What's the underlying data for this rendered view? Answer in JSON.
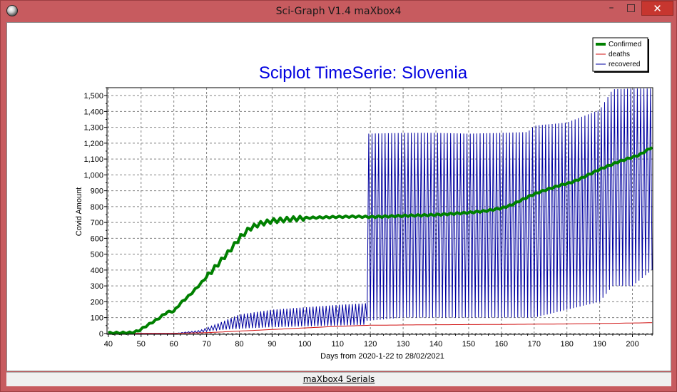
{
  "window": {
    "title": "Sci-Graph V1.4 maXbox4",
    "minimize_glyph": "–",
    "maximize_glyph": "□",
    "close_glyph": "✕",
    "icon": "app-globe-icon"
  },
  "status_bar": {
    "text": "maXbox4 Serials"
  },
  "colors": {
    "confirmed": "#008000",
    "deaths": "#d01010",
    "recovered": "#0000a0",
    "title": "#0000e0",
    "window_frame": "#c75b5f",
    "close_button": "#c7362f"
  },
  "chart_data": {
    "type": "line",
    "title": "Sciplot TimeSerie: Slovenia",
    "xlabel": "Days from 2020-1-22 to 28/02/2021",
    "ylabel": "Covid Amount",
    "xlim": [
      39.6,
      206.2
    ],
    "ylim": [
      -5,
      1550
    ],
    "xticks": [
      40,
      50,
      60,
      70,
      80,
      90,
      100,
      110,
      120,
      130,
      140,
      150,
      160,
      170,
      180,
      190,
      200
    ],
    "yticks": [
      0,
      100,
      200,
      300,
      400,
      500,
      600,
      700,
      800,
      900,
      1000,
      1100,
      1200,
      1300,
      1400,
      1500
    ],
    "ytick_labels": [
      "0",
      "100",
      "200",
      "300",
      "400",
      "500",
      "600",
      "700",
      "800",
      "900",
      "1,000",
      "1,100",
      "1,200",
      "1,300",
      "1,400",
      "1,500"
    ],
    "grid": true,
    "legend_position": "top-right",
    "series": [
      {
        "name": "Confirmed",
        "style": "thick",
        "x": [
          40,
          47,
          49,
          51,
          55,
          58,
          60,
          62,
          65,
          68,
          71,
          74,
          77,
          80,
          83,
          86,
          90,
          95,
          100,
          105,
          110,
          115,
          120,
          125,
          130,
          135,
          140,
          145,
          150,
          155,
          160,
          163,
          166,
          169,
          172,
          175,
          178,
          181,
          184,
          187,
          190,
          193,
          196,
          199,
          202,
          204,
          206
        ],
        "y": [
          3,
          5,
          15,
          40,
          90,
          135,
          140,
          190,
          245,
          310,
          380,
          450,
          520,
          600,
          660,
          690,
          710,
          720,
          728,
          732,
          735,
          737,
          735,
          738,
          742,
          745,
          748,
          755,
          762,
          772,
          790,
          810,
          840,
          870,
          895,
          915,
          935,
          950,
          975,
          1005,
          1035,
          1060,
          1085,
          1105,
          1125,
          1150,
          1175
        ]
      },
      {
        "name": "deaths",
        "style": "thin",
        "x": [
          40,
          60,
          70,
          80,
          90,
          100,
          110,
          120,
          140,
          160,
          180,
          200,
          206
        ],
        "y": [
          0,
          1,
          5,
          15,
          25,
          35,
          45,
          52,
          55,
          57,
          60,
          66,
          68
        ]
      },
      {
        "name": "recovered",
        "style": "thin-oscillating",
        "envelope_x": [
          40,
          60,
          68,
          72,
          80,
          90,
          100,
          110,
          118.5,
          119,
          130,
          140,
          150,
          160,
          168,
          170,
          180,
          190,
          194,
          200,
          206
        ],
        "envelope_low": [
          0,
          0,
          5,
          20,
          30,
          40,
          45,
          50,
          55,
          80,
          100,
          100,
          100,
          100,
          100,
          100,
          150,
          200,
          300,
          300,
          400
        ],
        "envelope_high": [
          0,
          0,
          20,
          50,
          120,
          150,
          165,
          180,
          190,
          1260,
          1265,
          1265,
          1260,
          1265,
          1270,
          1310,
          1330,
          1410,
          1540,
          1545,
          1545
        ]
      }
    ]
  }
}
